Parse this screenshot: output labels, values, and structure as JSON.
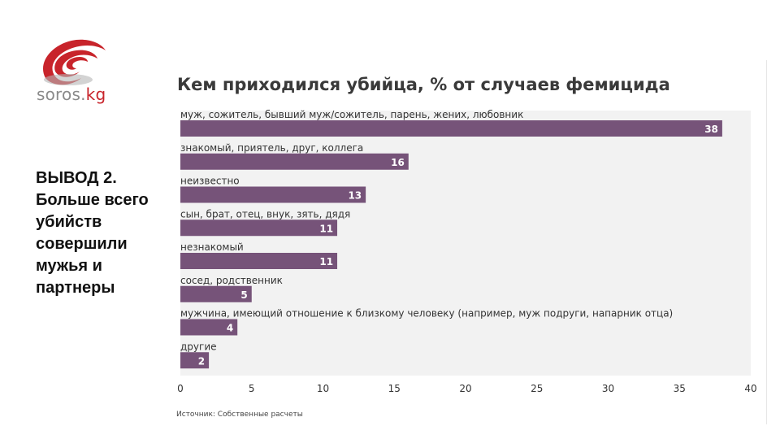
{
  "brand": {
    "logo_text_main": "soros.",
    "logo_text_accent": "kg"
  },
  "conclusion": {
    "lines": [
      "ВЫВОД 2.",
      "Больше всего",
      "убийств",
      "совершили",
      "мужья и",
      "партнеры"
    ]
  },
  "source": "Источник: Собственные расчеты",
  "colors": {
    "bar": "#765379",
    "plot_bg": "#f2f2f2",
    "brand_red": "#c8242b"
  },
  "chart_data": {
    "type": "bar",
    "orientation": "horizontal",
    "title": "Кем приходился убийца, % от случаев фемицида",
    "categories": [
      "муж, сожитель, бывший муж/сожитель, парень, жених, любовник",
      "знакомый, приятель, друг, коллега",
      "неизвестно",
      "сын, брат, отец, внук, зять, дядя",
      "незнакомый",
      "сосед, родственник",
      "мужчина, имеющий отношение к близкому человеку (например, муж подруги, напарник отца)",
      "другие"
    ],
    "values": [
      38,
      16,
      13,
      11,
      11,
      5,
      4,
      2
    ],
    "xlim": [
      0,
      40
    ],
    "xticks": [
      0,
      5,
      10,
      15,
      20,
      25,
      30,
      35,
      40
    ],
    "data_labels": true,
    "grid": false,
    "legend": "none"
  }
}
